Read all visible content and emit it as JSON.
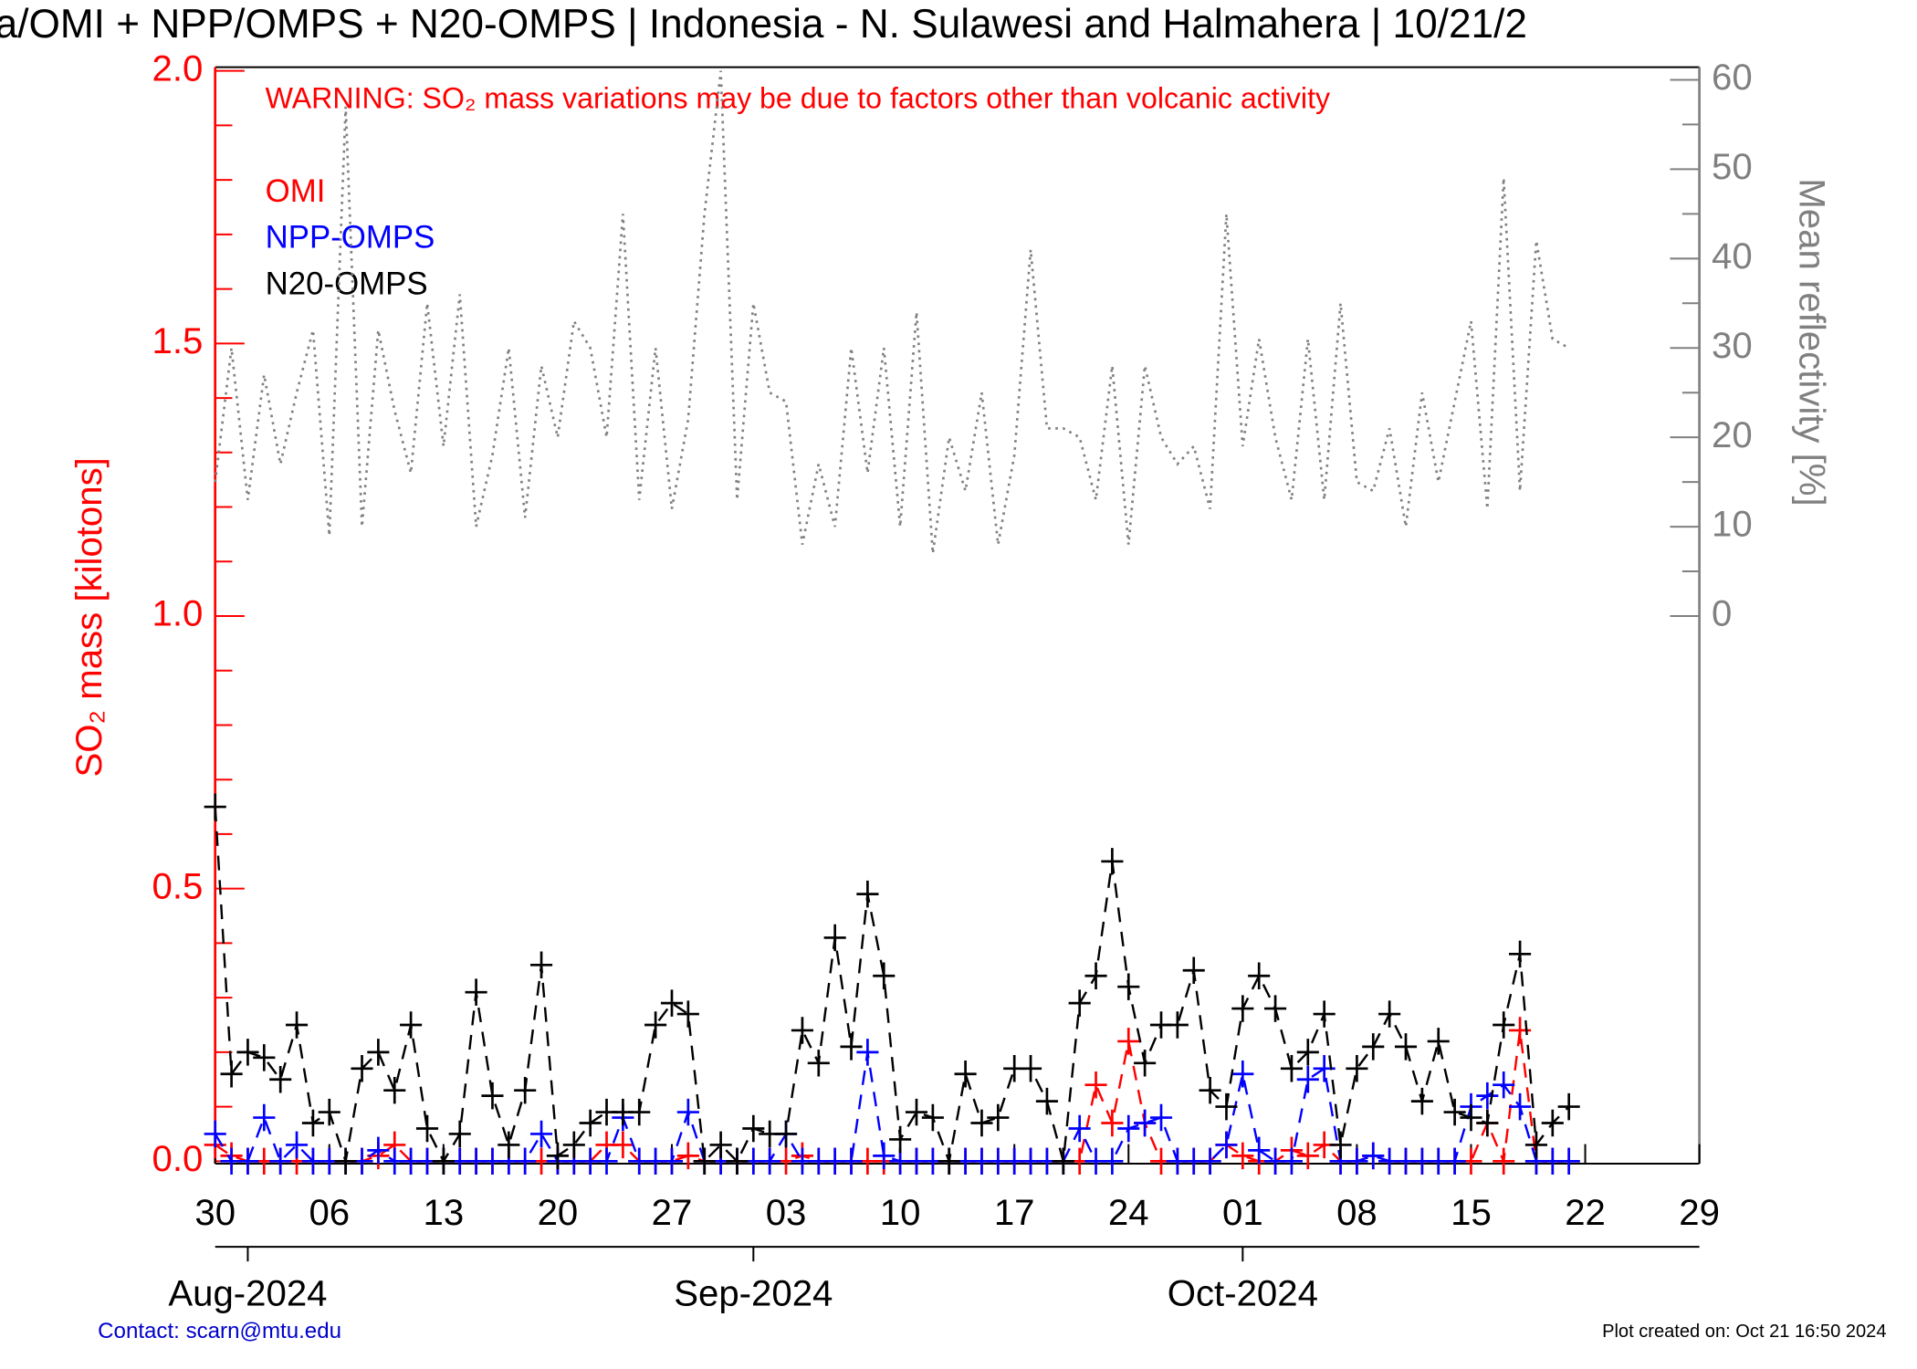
{
  "chart_data": {
    "type": "line",
    "title": "a/OMI + NPP/OMPS + N20-OMPS | Indonesia - N. Sulawesi and Halmahera | 10/21/2",
    "warning": "WARNING: SO₂ mass variations may be due to factors other than volcanic activity",
    "y_label": "SO₂ mass [kilotons]",
    "y2_label": "Mean reflectivity [%]",
    "contact": "Contact: scarn@mtu.edu",
    "created": "Plot created on: Oct 21 16:50 2024",
    "xlim": [
      "2024-07-30",
      "2024-10-29"
    ],
    "xticks": [
      {
        "value": "2024-07-30",
        "label": "30"
      },
      {
        "value": "2024-08-06",
        "label": "06"
      },
      {
        "value": "2024-08-13",
        "label": "13"
      },
      {
        "value": "2024-08-20",
        "label": "20"
      },
      {
        "value": "2024-08-27",
        "label": "27"
      },
      {
        "value": "2024-09-03",
        "label": "03"
      },
      {
        "value": "2024-09-10",
        "label": "10"
      },
      {
        "value": "2024-09-17",
        "label": "17"
      },
      {
        "value": "2024-09-24",
        "label": "24"
      },
      {
        "value": "2024-10-01",
        "label": "01"
      },
      {
        "value": "2024-10-08",
        "label": "08"
      },
      {
        "value": "2024-10-15",
        "label": "15"
      },
      {
        "value": "2024-10-22",
        "label": "22"
      },
      {
        "value": "2024-10-29",
        "label": "29"
      }
    ],
    "month_ticks": [
      {
        "value": "2024-08-01",
        "label": "Aug-2024"
      },
      {
        "value": "2024-09-01",
        "label": "Sep-2024"
      },
      {
        "value": "2024-10-01",
        "label": "Oct-2024"
      }
    ],
    "ylim": [
      0,
      2
    ],
    "yticks": [
      {
        "value": 0,
        "label": "0.0"
      },
      {
        "value": 0.5,
        "label": "0.5"
      },
      {
        "value": 1,
        "label": "1.0"
      },
      {
        "value": 1.5,
        "label": "1.5"
      },
      {
        "value": 2,
        "label": "2.0"
      }
    ],
    "yminorticks": [
      0.1,
      0.2,
      0.3,
      0.4,
      0.6,
      0.7,
      0.8,
      0.9,
      1.1,
      1.2,
      1.3,
      1.4,
      1.6,
      1.7,
      1.8,
      1.9
    ],
    "y2lim": [
      -61,
      61
    ],
    "y2ticks": [
      0,
      10,
      20,
      30,
      40,
      50,
      60
    ],
    "y2minorticks": [
      5,
      15,
      25,
      35,
      45,
      55
    ],
    "x": [
      "2024-07-30",
      "2024-07-31",
      "2024-08-01",
      "2024-08-02",
      "2024-08-03",
      "2024-08-04",
      "2024-08-05",
      "2024-08-06",
      "2024-08-07",
      "2024-08-08",
      "2024-08-09",
      "2024-08-10",
      "2024-08-11",
      "2024-08-12",
      "2024-08-13",
      "2024-08-14",
      "2024-08-15",
      "2024-08-16",
      "2024-08-17",
      "2024-08-18",
      "2024-08-19",
      "2024-08-20",
      "2024-08-21",
      "2024-08-22",
      "2024-08-23",
      "2024-08-24",
      "2024-08-25",
      "2024-08-26",
      "2024-08-27",
      "2024-08-28",
      "2024-08-29",
      "2024-08-30",
      "2024-08-31",
      "2024-09-01",
      "2024-09-02",
      "2024-09-03",
      "2024-09-04",
      "2024-09-05",
      "2024-09-06",
      "2024-09-07",
      "2024-09-08",
      "2024-09-09",
      "2024-09-10",
      "2024-09-11",
      "2024-09-12",
      "2024-09-13",
      "2024-09-14",
      "2024-09-15",
      "2024-09-16",
      "2024-09-17",
      "2024-09-18",
      "2024-09-19",
      "2024-09-20",
      "2024-09-21",
      "2024-09-22",
      "2024-09-23",
      "2024-09-24",
      "2024-09-25",
      "2024-09-26",
      "2024-09-27",
      "2024-09-28",
      "2024-09-29",
      "2024-09-30",
      "2024-10-01",
      "2024-10-02",
      "2024-10-03",
      "2024-10-04",
      "2024-10-05",
      "2024-10-06",
      "2024-10-07",
      "2024-10-08",
      "2024-10-09",
      "2024-10-10",
      "2024-10-11",
      "2024-10-12",
      "2024-10-13",
      "2024-10-14",
      "2024-10-15",
      "2024-10-16",
      "2024-10-17",
      "2024-10-18",
      "2024-10-19",
      "2024-10-20",
      "2024-10-21"
    ],
    "series": [
      {
        "name": "OMI",
        "color": "#ff0000",
        "values": [
          0.03,
          0.01,
          0,
          0,
          0,
          0,
          0,
          0,
          0,
          0,
          0.01,
          0.03,
          0,
          0,
          0,
          0,
          0,
          0,
          0,
          0,
          0,
          0,
          0,
          0,
          0.03,
          0.03,
          0,
          0,
          0,
          0.01,
          0,
          0,
          0,
          0,
          0,
          0,
          0.01,
          0,
          0,
          0,
          0,
          0,
          0,
          0,
          0,
          0,
          0,
          0,
          0,
          0,
          0,
          0,
          0,
          0,
          0.14,
          0.07,
          0.22,
          0.07,
          0,
          0,
          0,
          0,
          0.03,
          0.01,
          0,
          0,
          0.02,
          0.01,
          0.03,
          0,
          0,
          0.01,
          0,
          0,
          0,
          0,
          0,
          0,
          0.07,
          0,
          0.24,
          0,
          0,
          0
        ]
      },
      {
        "name": "NPP-OMPS",
        "color": "#0000ff",
        "values": [
          0.05,
          0,
          0,
          0.08,
          0,
          0.03,
          0,
          0,
          0,
          0,
          0.02,
          0,
          0,
          0,
          0,
          0,
          0,
          0,
          0,
          0,
          0.05,
          0,
          0,
          0,
          0,
          0.08,
          0,
          0,
          0,
          0.09,
          0,
          0,
          0,
          0,
          0,
          0.05,
          0,
          0,
          0,
          0,
          0.2,
          0.01,
          0,
          0,
          0,
          0,
          0,
          0,
          0,
          0,
          0,
          0,
          0,
          0.06,
          0,
          0,
          0.06,
          0.07,
          0.08,
          0,
          0,
          0,
          0.03,
          0.16,
          0.02,
          0,
          0,
          0.15,
          0.17,
          0,
          0,
          0.01,
          0,
          0,
          0,
          0,
          0,
          0.1,
          0.12,
          0.14,
          0.1,
          0,
          0,
          0
        ]
      },
      {
        "name": "N20-OMPS",
        "color": "#000000",
        "values": [
          0.65,
          0.16,
          0.2,
          0.19,
          0.15,
          0.25,
          0.07,
          0.09,
          0,
          0.17,
          0.2,
          0.13,
          0.25,
          0.06,
          0,
          0.05,
          0.31,
          0.12,
          0.03,
          0.13,
          0.36,
          0.01,
          0.03,
          0.07,
          0.09,
          0.09,
          0.09,
          0.25,
          0.29,
          0.27,
          0,
          0.03,
          0,
          0.06,
          0.05,
          0.05,
          0.24,
          0.18,
          0.41,
          0.21,
          0.49,
          0.34,
          0.04,
          0.09,
          0.08,
          0,
          0.16,
          0.07,
          0.08,
          0.17,
          0.17,
          0.11,
          0,
          0.29,
          0.34,
          0.55,
          0.32,
          0.18,
          0.25,
          0.25,
          0.35,
          0.13,
          0.1,
          0.28,
          0.34,
          0.28,
          0.17,
          0.2,
          0.27,
          0.03,
          0.17,
          0.21,
          0.27,
          0.21,
          0.11,
          0.22,
          0.09,
          0.08,
          0.07,
          0.25,
          0.38,
          0.03,
          0.07,
          0.1
        ]
      },
      {
        "color": "#808080",
        "axis": "y2",
        "values": [
          15,
          30,
          13,
          27,
          17,
          25,
          32,
          9,
          57,
          10,
          32,
          23,
          16,
          35,
          19,
          36,
          10,
          18,
          30,
          11,
          28,
          20,
          33,
          30,
          20,
          45,
          13,
          30,
          12,
          22,
          45,
          61,
          13,
          35,
          25,
          24,
          8,
          17,
          10,
          30,
          16,
          30,
          10,
          34,
          7,
          20,
          14,
          25,
          8,
          18,
          41,
          21,
          21,
          20,
          13,
          28,
          8,
          28,
          20,
          17,
          19,
          12,
          45,
          19,
          31,
          20,
          13,
          31,
          13,
          35,
          15,
          14,
          21,
          10,
          25,
          15,
          24,
          33,
          12,
          49,
          14,
          42,
          31,
          30
        ]
      }
    ]
  }
}
